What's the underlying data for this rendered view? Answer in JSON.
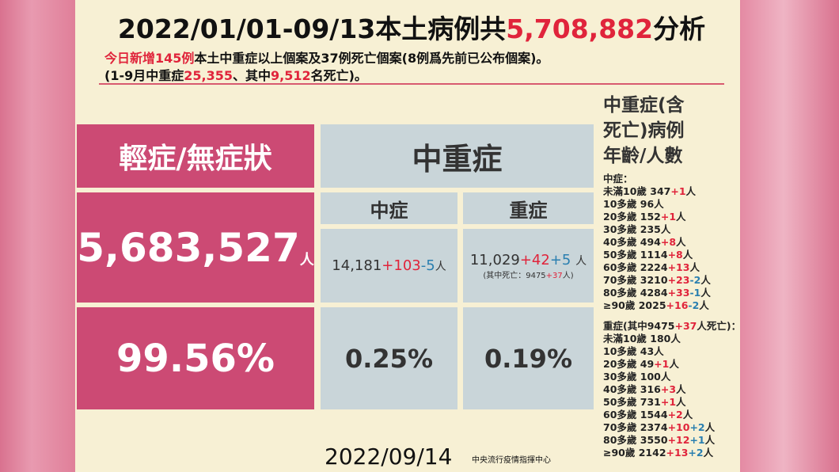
{
  "header": {
    "title": [
      "2022/01/01-09/13本土病例共",
      "5,708,882",
      "分析"
    ],
    "line1": [
      "今日新增145例",
      "本土中重症以上個案及37例死亡個案(8例爲先前已公布個案)。"
    ],
    "line2": [
      "(1-9月中重症",
      "25,355",
      "、其中",
      "9,512",
      "名死亡)。"
    ]
  },
  "table": {
    "mild_header": "輕症/無症狀",
    "mild_count": "5,683,527",
    "unit": "人",
    "mild_pct": "99.56%",
    "severe_header": "中重症",
    "moderate": {
      "label": "中症",
      "count": "14,181",
      "add": "+103",
      "sub": "-5",
      "pct": "0.25%"
    },
    "critical": {
      "label": "重症",
      "count": "11,029",
      "add": "+42",
      "adj": "+5",
      "deaths": [
        "(其中死亡：9475",
        "+37",
        "人)"
      ],
      "pct": "0.19%"
    }
  },
  "sidebar": {
    "title": [
      "中重症(含",
      "死亡)病例",
      "年齡/人數"
    ],
    "unit": "人",
    "moderate_title": "中症：",
    "moderate": [
      {
        "age": "未滿10歲",
        "count": "347",
        "add": "+1"
      },
      {
        "age": "10多歲",
        "count": "96"
      },
      {
        "age": "20多歲",
        "count": "152",
        "add": "+1"
      },
      {
        "age": "30多歲",
        "count": "235"
      },
      {
        "age": "40多歲",
        "count": "494",
        "add": "+8"
      },
      {
        "age": "50多歲",
        "count": "1114",
        "add": "+8"
      },
      {
        "age": "60多歲",
        "count": "2224",
        "add": "+13"
      },
      {
        "age": "70多歲",
        "count": "3210",
        "add": "+23",
        "adj": "-2"
      },
      {
        "age": "80多歲",
        "count": "4284",
        "add": "+33",
        "adj": "-1"
      },
      {
        "age": "≥90歲",
        "count": "2025",
        "add": "+16",
        "adj": "-2"
      }
    ],
    "critical_title": [
      "重症(其中9475",
      "+37",
      "人死亡)："
    ],
    "critical": [
      {
        "age": "未滿10歲",
        "count": "180"
      },
      {
        "age": "10多歲",
        "count": "43"
      },
      {
        "age": "20多歲",
        "count": "49",
        "add": "+1"
      },
      {
        "age": "30多歲",
        "count": "100"
      },
      {
        "age": "40多歲",
        "count": "316",
        "add": "+3"
      },
      {
        "age": "50多歲",
        "count": "731",
        "add": "+1"
      },
      {
        "age": "60多歲",
        "count": "1544",
        "add": "+2"
      },
      {
        "age": "70多歲",
        "count": "2374",
        "add": "+10",
        "adj": "+2"
      },
      {
        "age": "80多歲",
        "count": "3550",
        "add": "+12",
        "adj": "+1"
      },
      {
        "age": "≥90歲",
        "count": "2142",
        "add": "+13",
        "adj": "+2"
      }
    ]
  },
  "footer": {
    "date": "2022/09/14",
    "source": "中央流行疫情指揮中心"
  }
}
